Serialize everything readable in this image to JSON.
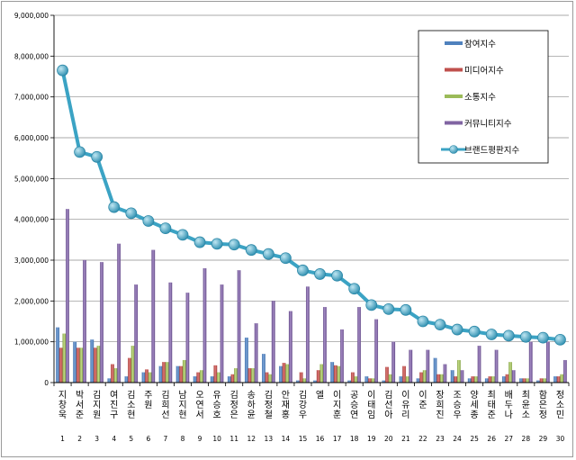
{
  "chart_data": {
    "type": "bar",
    "title": "",
    "xlabel": "",
    "ylabel": "",
    "ylim": [
      0,
      9000000
    ],
    "y_ticks": [
      "0",
      "1,000,000",
      "2,000,000",
      "3,000,000",
      "4,000,000",
      "5,000,000",
      "6,000,000",
      "7,000,000",
      "8,000,000",
      "9,000,000"
    ],
    "grid": true,
    "legend_position": "top-right",
    "categories": [
      "지창욱",
      "박서준",
      "김지원",
      "여진구",
      "김소현",
      "주원",
      "김희선",
      "남지현",
      "오연서",
      "유승호",
      "김정은",
      "송하윤",
      "김정철",
      "안재홍",
      "김강우",
      "엘",
      "이지훈",
      "공승연",
      "이태임",
      "김선아",
      "이유리",
      "이준",
      "장희진",
      "조승우",
      "양세종",
      "최태준",
      "배두나",
      "최윤소",
      "함은정",
      "정소민"
    ],
    "ranks": [
      "1",
      "2",
      "3",
      "4",
      "5",
      "6",
      "7",
      "8",
      "9",
      "10",
      "11",
      "12",
      "13",
      "14",
      "15",
      "16",
      "17",
      "18",
      "19",
      "20",
      "21",
      "22",
      "23",
      "24",
      "25",
      "26",
      "27",
      "28",
      "29",
      "30"
    ],
    "series": [
      {
        "name": "참여지수",
        "color": "#4f81bd",
        "kind": "bar",
        "values": [
          1350000,
          1000000,
          1050000,
          100000,
          150000,
          250000,
          400000,
          400000,
          150000,
          150000,
          150000,
          1100000,
          700000,
          400000,
          50000,
          50000,
          500000,
          50000,
          150000,
          50000,
          150000,
          100000,
          600000,
          300000,
          100000,
          100000,
          150000,
          100000,
          50000,
          150000
        ]
      },
      {
        "name": "미디어지수",
        "color": "#c0504d",
        "kind": "bar",
        "values": [
          850000,
          850000,
          850000,
          450000,
          600000,
          320000,
          500000,
          400000,
          250000,
          420000,
          200000,
          350000,
          250000,
          480000,
          250000,
          300000,
          420000,
          250000,
          100000,
          380000,
          400000,
          250000,
          200000,
          150000,
          150000,
          150000,
          200000,
          100000,
          100000,
          150000
        ]
      },
      {
        "name": "소통지수",
        "color": "#9bbb59",
        "kind": "bar",
        "values": [
          1200000,
          850000,
          900000,
          350000,
          900000,
          250000,
          500000,
          550000,
          300000,
          250000,
          350000,
          350000,
          200000,
          450000,
          100000,
          450000,
          400000,
          150000,
          100000,
          200000,
          150000,
          300000,
          200000,
          550000,
          150000,
          150000,
          500000,
          100000,
          100000,
          200000
        ]
      },
      {
        "name": "커뮤니티지수",
        "color": "#8064a2",
        "kind": "bar",
        "values": [
          4250000,
          3000000,
          2950000,
          3400000,
          2400000,
          3250000,
          2450000,
          2200000,
          2800000,
          2400000,
          2750000,
          1450000,
          2000000,
          1750000,
          2350000,
          1850000,
          1300000,
          1850000,
          1550000,
          1000000,
          800000,
          800000,
          450000,
          300000,
          900000,
          800000,
          300000,
          1000000,
          1000000,
          550000
        ]
      },
      {
        "name": "브랜드평판지수",
        "color": "#4bacc6",
        "kind": "line",
        "values": [
          7650000,
          5650000,
          5530000,
          4300000,
          4150000,
          3960000,
          3780000,
          3620000,
          3440000,
          3400000,
          3380000,
          3250000,
          3150000,
          3050000,
          2750000,
          2660000,
          2620000,
          2300000,
          1900000,
          1800000,
          1780000,
          1500000,
          1420000,
          1300000,
          1250000,
          1180000,
          1150000,
          1120000,
          1100000,
          1050000
        ]
      }
    ]
  }
}
